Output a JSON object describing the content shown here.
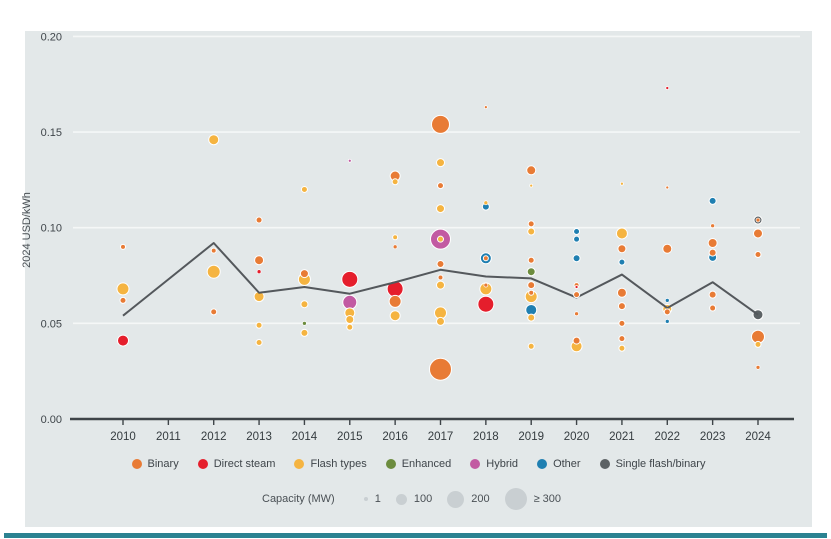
{
  "chart_data": {
    "type": "scatter",
    "ylabel": "2024 USD/kWh",
    "ylim": [
      0,
      0.2
    ],
    "yticks": [
      {
        "value": 0.0,
        "label": "0.00"
      },
      {
        "value": 0.05,
        "label": "0.05"
      },
      {
        "value": 0.1,
        "label": "0.10"
      },
      {
        "value": 0.15,
        "label": "0.15"
      },
      {
        "value": 0.2,
        "label": "0.20"
      }
    ],
    "x_categories": [
      "2010",
      "2011",
      "2012",
      "2013",
      "2014",
      "2015",
      "2016",
      "2017",
      "2018",
      "2019",
      "2020",
      "2021",
      "2022",
      "2023",
      "2024"
    ],
    "trend_line_values": [
      0.054,
      0.073,
      0.092,
      0.066,
      0.069,
      0.0655,
      0.0715,
      0.078,
      0.0745,
      0.0735,
      0.0635,
      0.0755,
      0.058,
      0.0715,
      0.0545
    ],
    "colors": {
      "binary": "#E87B35",
      "direct_steam": "#E51E2C",
      "flash": "#F5B441",
      "enhanced": "#6C8C3E",
      "hybrid": "#C25AA2",
      "other": "#1F7FB1",
      "single_flash_binary": "#5C6265",
      "line": "#54585C",
      "panel_bg": "#E3E8E9",
      "bottom_bar": "#2B8291"
    },
    "type_legend": [
      {
        "label": "Binary",
        "type": "binary",
        "color": "#E87B35"
      },
      {
        "label": "Direct steam",
        "type": "direct_steam",
        "color": "#E51E2C"
      },
      {
        "label": "Flash types",
        "type": "flash",
        "color": "#F5B441"
      },
      {
        "label": "Enhanced",
        "type": "enhanced",
        "color": "#6C8C3E"
      },
      {
        "label": "Hybrid",
        "type": "hybrid",
        "color": "#C25AA2"
      },
      {
        "label": "Other",
        "type": "other",
        "color": "#1F7FB1"
      },
      {
        "label": "Single flash/binary",
        "type": "single_flash_binary",
        "color": "#5C6265"
      }
    ],
    "capacity_legend": {
      "title": "Capacity (MW)",
      "items": [
        {
          "label": "1",
          "r": 2
        },
        {
          "label": "100",
          "r": 5.5
        },
        {
          "label": "200",
          "r": 8.5
        },
        {
          "label": "≥ 300",
          "r": 11
        }
      ]
    },
    "bubbles": [
      {
        "x": "2010",
        "v": 0.09,
        "t": "binary",
        "r": 2.5
      },
      {
        "x": "2010",
        "v": 0.068,
        "t": "flash",
        "r": 6
      },
      {
        "x": "2010",
        "v": 0.062,
        "t": "binary",
        "r": 3
      },
      {
        "x": "2010",
        "v": 0.041,
        "t": "direct_steam",
        "r": 5.5
      },
      {
        "x": "2012",
        "v": 0.146,
        "t": "flash",
        "r": 5
      },
      {
        "x": "2012",
        "v": 0.088,
        "t": "binary",
        "r": 2.5
      },
      {
        "x": "2012",
        "v": 0.077,
        "t": "flash",
        "r": 6.5
      },
      {
        "x": "2012",
        "v": 0.056,
        "t": "binary",
        "r": 3
      },
      {
        "x": "2013",
        "v": 0.104,
        "t": "binary",
        "r": 3
      },
      {
        "x": "2013",
        "v": 0.083,
        "t": "binary",
        "r": 4.5
      },
      {
        "x": "2013",
        "v": 0.077,
        "t": "direct_steam",
        "r": 2
      },
      {
        "x": "2013",
        "v": 0.064,
        "t": "flash",
        "r": 5
      },
      {
        "x": "2013",
        "v": 0.049,
        "t": "flash",
        "r": 3
      },
      {
        "x": "2013",
        "v": 0.04,
        "t": "flash",
        "r": 3
      },
      {
        "x": "2014",
        "v": 0.12,
        "t": "flash",
        "r": 3
      },
      {
        "x": "2014",
        "v": 0.076,
        "t": "binary",
        "r": 4
      },
      {
        "x": "2014",
        "v": 0.073,
        "t": "flash",
        "r": 6
      },
      {
        "x": "2014",
        "v": 0.06,
        "t": "flash",
        "r": 3.5
      },
      {
        "x": "2014",
        "v": 0.05,
        "t": "enhanced",
        "r": 2
      },
      {
        "x": "2014",
        "v": 0.045,
        "t": "flash",
        "r": 3.5
      },
      {
        "x": "2015",
        "v": 0.135,
        "t": "hybrid",
        "r": 1.5
      },
      {
        "x": "2015",
        "v": 0.073,
        "t": "direct_steam",
        "r": 8
      },
      {
        "x": "2015",
        "v": 0.061,
        "t": "hybrid",
        "r": 7
      },
      {
        "x": "2015",
        "v": 0.0555,
        "t": "flash",
        "r": 5
      },
      {
        "x": "2015",
        "v": 0.052,
        "t": "flash",
        "r": 4
      },
      {
        "x": "2015",
        "v": 0.048,
        "t": "flash",
        "r": 3
      },
      {
        "x": "2016",
        "v": 0.127,
        "t": "binary",
        "r": 5
      },
      {
        "x": "2016",
        "v": 0.124,
        "t": "flash",
        "r": 3
      },
      {
        "x": "2016",
        "v": 0.095,
        "t": "flash",
        "r": 2.5
      },
      {
        "x": "2016",
        "v": 0.09,
        "t": "binary",
        "r": 2
      },
      {
        "x": "2016",
        "v": 0.068,
        "t": "direct_steam",
        "r": 8
      },
      {
        "x": "2016",
        "v": 0.0615,
        "t": "binary",
        "r": 6
      },
      {
        "x": "2016",
        "v": 0.054,
        "t": "flash",
        "r": 5
      },
      {
        "x": "2017",
        "v": 0.154,
        "t": "binary",
        "r": 9
      },
      {
        "x": "2017",
        "v": 0.134,
        "t": "flash",
        "r": 4
      },
      {
        "x": "2017",
        "v": 0.122,
        "t": "binary",
        "r": 3
      },
      {
        "x": "2017",
        "v": 0.11,
        "t": "flash",
        "r": 4
      },
      {
        "x": "2017",
        "v": 0.094,
        "t": "hybrid",
        "r": 10
      },
      {
        "x": "2017",
        "v": 0.094,
        "t": "flash",
        "r": 3
      },
      {
        "x": "2017",
        "v": 0.081,
        "t": "binary",
        "r": 3.5
      },
      {
        "x": "2017",
        "v": 0.074,
        "t": "binary",
        "r": 2.5
      },
      {
        "x": "2017",
        "v": 0.07,
        "t": "flash",
        "r": 4
      },
      {
        "x": "2017",
        "v": 0.0555,
        "t": "flash",
        "r": 6
      },
      {
        "x": "2017",
        "v": 0.051,
        "t": "flash",
        "r": 4
      },
      {
        "x": "2017",
        "v": 0.026,
        "t": "binary",
        "r": 11
      },
      {
        "x": "2018",
        "v": 0.163,
        "t": "binary",
        "r": 1.5
      },
      {
        "x": "2018",
        "v": 0.113,
        "t": "flash",
        "r": 2
      },
      {
        "x": "2018",
        "v": 0.111,
        "t": "other",
        "r": 3.5
      },
      {
        "x": "2018",
        "v": 0.084,
        "t": "other",
        "r": 5.5
      },
      {
        "x": "2018",
        "v": 0.084,
        "t": "binary",
        "r": 2.5
      },
      {
        "x": "2018",
        "v": 0.07,
        "t": "binary",
        "r": 2
      },
      {
        "x": "2018",
        "v": 0.068,
        "t": "flash",
        "r": 6
      },
      {
        "x": "2018",
        "v": 0.06,
        "t": "direct_steam",
        "r": 8
      },
      {
        "x": "2019",
        "v": 0.13,
        "t": "binary",
        "r": 4.5
      },
      {
        "x": "2019",
        "v": 0.122,
        "t": "flash",
        "r": 1.5
      },
      {
        "x": "2019",
        "v": 0.102,
        "t": "binary",
        "r": 3
      },
      {
        "x": "2019",
        "v": 0.098,
        "t": "flash",
        "r": 3.5
      },
      {
        "x": "2019",
        "v": 0.083,
        "t": "binary",
        "r": 3
      },
      {
        "x": "2019",
        "v": 0.077,
        "t": "enhanced",
        "r": 4
      },
      {
        "x": "2019",
        "v": 0.07,
        "t": "binary",
        "r": 3.5
      },
      {
        "x": "2019",
        "v": 0.066,
        "t": "binary",
        "r": 2.5
      },
      {
        "x": "2019",
        "v": 0.064,
        "t": "flash",
        "r": 6
      },
      {
        "x": "2019",
        "v": 0.057,
        "t": "other",
        "r": 5.5
      },
      {
        "x": "2019",
        "v": 0.053,
        "t": "flash",
        "r": 3.5
      },
      {
        "x": "2019",
        "v": 0.038,
        "t": "flash",
        "r": 3
      },
      {
        "x": "2020",
        "v": 0.098,
        "t": "other",
        "r": 3
      },
      {
        "x": "2020",
        "v": 0.094,
        "t": "other",
        "r": 3
      },
      {
        "x": "2020",
        "v": 0.084,
        "t": "other",
        "r": 3.5
      },
      {
        "x": "2020",
        "v": 0.07,
        "t": "binary",
        "r": 2.5
      },
      {
        "x": "2020",
        "v": 0.069,
        "t": "direct_steam",
        "r": 1.5
      },
      {
        "x": "2020",
        "v": 0.065,
        "t": "binary",
        "r": 3
      },
      {
        "x": "2020",
        "v": 0.055,
        "t": "binary",
        "r": 2
      },
      {
        "x": "2020",
        "v": 0.041,
        "t": "binary",
        "r": 3.5
      },
      {
        "x": "2020",
        "v": 0.038,
        "t": "flash",
        "r": 5.5
      },
      {
        "x": "2021",
        "v": 0.123,
        "t": "flash",
        "r": 1.5
      },
      {
        "x": "2021",
        "v": 0.097,
        "t": "flash",
        "r": 5.5
      },
      {
        "x": "2021",
        "v": 0.089,
        "t": "binary",
        "r": 4
      },
      {
        "x": "2021",
        "v": 0.082,
        "t": "other",
        "r": 3
      },
      {
        "x": "2021",
        "v": 0.066,
        "t": "binary",
        "r": 4.5
      },
      {
        "x": "2021",
        "v": 0.059,
        "t": "binary",
        "r": 3.5
      },
      {
        "x": "2021",
        "v": 0.05,
        "t": "binary",
        "r": 3
      },
      {
        "x": "2021",
        "v": 0.042,
        "t": "binary",
        "r": 3
      },
      {
        "x": "2021",
        "v": 0.037,
        "t": "flash",
        "r": 3
      },
      {
        "x": "2022",
        "v": 0.173,
        "t": "direct_steam",
        "r": 1.5
      },
      {
        "x": "2022",
        "v": 0.121,
        "t": "binary",
        "r": 1.5
      },
      {
        "x": "2022",
        "v": 0.089,
        "t": "binary",
        "r": 4.5
      },
      {
        "x": "2022",
        "v": 0.062,
        "t": "other",
        "r": 2
      },
      {
        "x": "2022",
        "v": 0.0575,
        "t": "flash",
        "r": 4.5
      },
      {
        "x": "2022",
        "v": 0.056,
        "t": "binary",
        "r": 3
      },
      {
        "x": "2022",
        "v": 0.051,
        "t": "other",
        "r": 2
      },
      {
        "x": "2023",
        "v": 0.114,
        "t": "other",
        "r": 3.5
      },
      {
        "x": "2023",
        "v": 0.101,
        "t": "binary",
        "r": 2
      },
      {
        "x": "2023",
        "v": 0.092,
        "t": "binary",
        "r": 4.5
      },
      {
        "x": "2023",
        "v": 0.087,
        "t": "binary",
        "r": 3.5
      },
      {
        "x": "2023",
        "v": 0.0845,
        "t": "other",
        "r": 4
      },
      {
        "x": "2023",
        "v": 0.065,
        "t": "binary",
        "r": 3.5
      },
      {
        "x": "2023",
        "v": 0.058,
        "t": "binary",
        "r": 3
      },
      {
        "x": "2024",
        "v": 0.104,
        "t": "single_flash_binary",
        "r": 4
      },
      {
        "x": "2024",
        "v": 0.104,
        "t": "binary",
        "r": 2
      },
      {
        "x": "2024",
        "v": 0.097,
        "t": "binary",
        "r": 4.5
      },
      {
        "x": "2024",
        "v": 0.086,
        "t": "binary",
        "r": 3
      },
      {
        "x": "2024",
        "v": 0.0545,
        "t": "single_flash_binary",
        "r": 5
      },
      {
        "x": "2024",
        "v": 0.043,
        "t": "binary",
        "r": 6.5
      },
      {
        "x": "2024",
        "v": 0.039,
        "t": "flash",
        "r": 3
      },
      {
        "x": "2024",
        "v": 0.027,
        "t": "binary",
        "r": 2
      }
    ]
  }
}
